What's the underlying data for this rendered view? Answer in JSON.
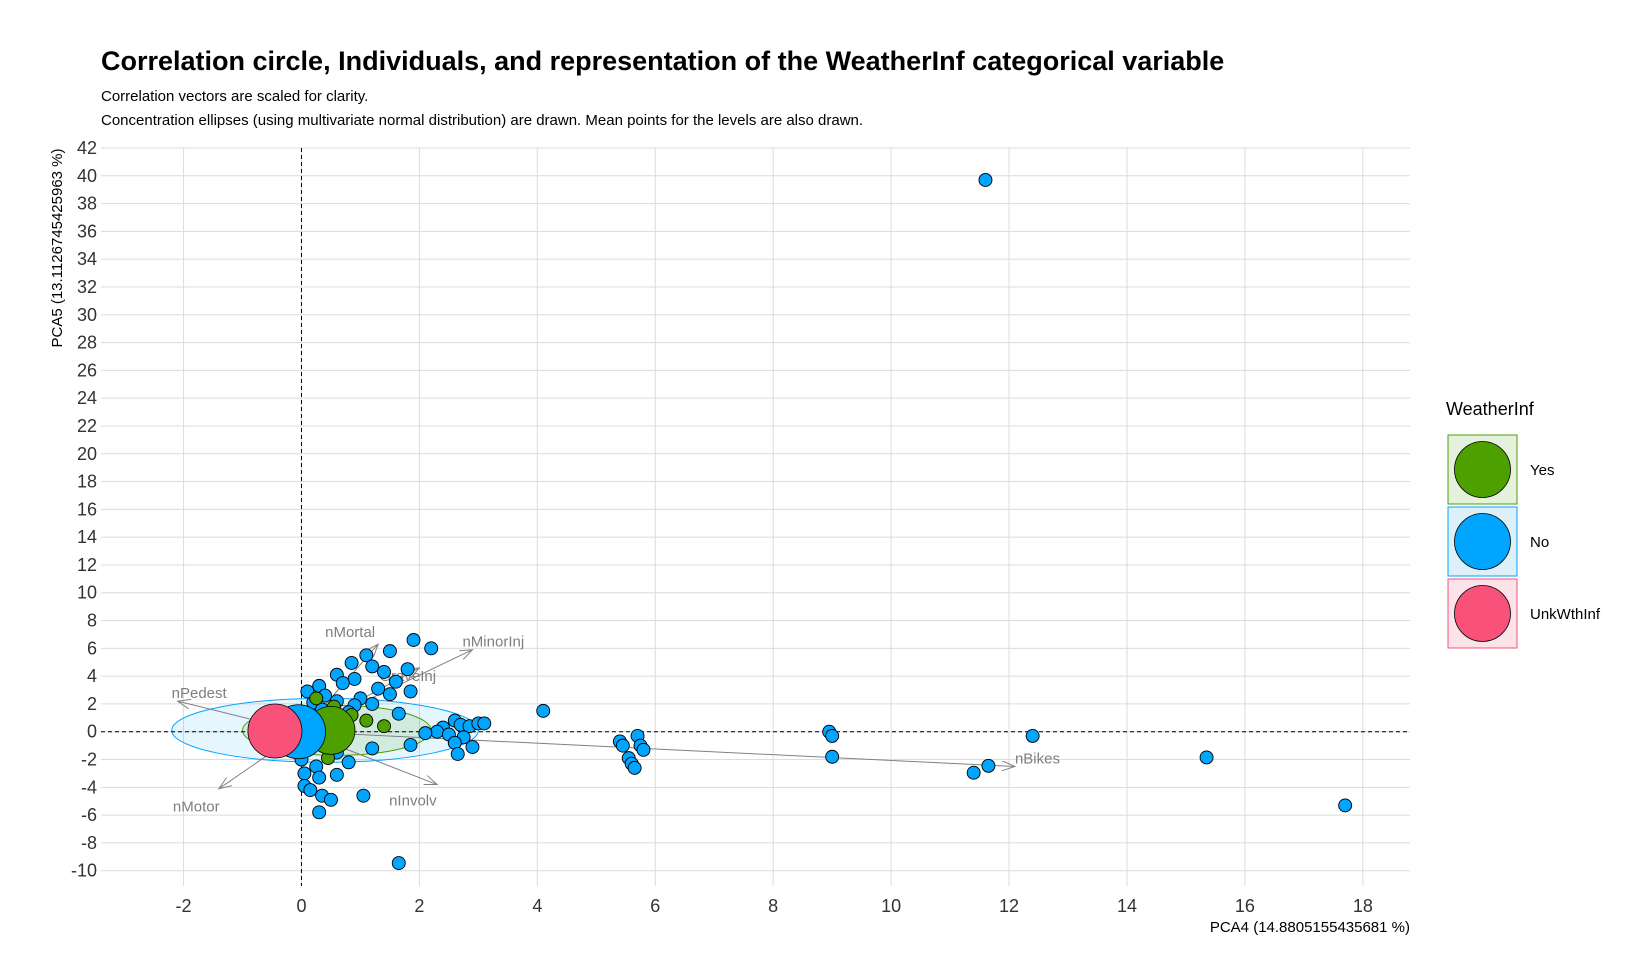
{
  "chart_data": {
    "type": "scatter",
    "title": "Correlation circle, Individuals, and representation of the WeatherInf categorical variable",
    "subtitle_lines": [
      "Correlation vectors are scaled for clarity.",
      "Concentration ellipses (using multivariate normal distribution) are drawn. Mean points for the levels are also drawn."
    ],
    "xlabel": "PCA4 (14.8805155435681 %)",
    "ylabel": "PCA5 (13.1126745425963 %)",
    "xlim": [
      -3.4,
      18.8
    ],
    "ylim": [
      -11.1,
      42
    ],
    "x_ticks": [
      -2,
      0,
      2,
      4,
      6,
      8,
      10,
      12,
      14,
      16,
      18
    ],
    "y_ticks": [
      -10,
      -8,
      -6,
      -4,
      -2,
      0,
      2,
      4,
      6,
      8,
      10,
      12,
      14,
      16,
      18,
      20,
      22,
      24,
      26,
      28,
      30,
      32,
      34,
      36,
      38,
      40,
      42
    ],
    "grid": true,
    "reference_lines": {
      "x": 0,
      "y": 0,
      "style": "dashed"
    },
    "legend": {
      "title": "WeatherInf",
      "position": "right",
      "entries": [
        "Yes",
        "No",
        "UnkWthInf"
      ]
    },
    "colors": {
      "Yes": "#4da000",
      "No": "#00a5ff",
      "UnkWthInf": "#f8527a"
    },
    "vectors": [
      {
        "name": "nMortal",
        "x": 1.3,
        "y": 6.3
      },
      {
        "name": "nMinorInj",
        "x": 2.9,
        "y": 5.9
      },
      {
        "name": "GraveInj",
        "x": 2.0,
        "y": 4.6
      },
      {
        "name": "nPedest",
        "x": -2.1,
        "y": 2.2
      },
      {
        "name": "nMotor",
        "x": -1.4,
        "y": -4.1
      },
      {
        "name": "nInvolv",
        "x": 2.3,
        "y": -3.8
      },
      {
        "name": "nBikes",
        "x": 12.1,
        "y": -2.5
      }
    ],
    "ellipses": [
      {
        "level": "No",
        "cx": 0.4,
        "cy": 0.1,
        "rx": 2.6,
        "ry": 2.3
      },
      {
        "level": "Yes",
        "cx": 0.6,
        "cy": 0.1,
        "rx": 1.6,
        "ry": 1.8
      }
    ],
    "mean_points": [
      {
        "level": "Yes",
        "x": 0.5,
        "y": 0.1
      },
      {
        "level": "No",
        "x": -0.05,
        "y": 0.0
      },
      {
        "level": "UnkWthInf",
        "x": -0.45,
        "y": 0.05
      }
    ],
    "series": [
      {
        "name": "No",
        "points": [
          [
            11.6,
            39.7
          ],
          [
            1.9,
            6.6
          ],
          [
            2.2,
            6.0
          ],
          [
            1.5,
            5.8
          ],
          [
            1.1,
            5.5
          ],
          [
            0.85,
            4.95
          ],
          [
            1.2,
            4.7
          ],
          [
            1.8,
            4.5
          ],
          [
            1.4,
            4.3
          ],
          [
            0.6,
            4.1
          ],
          [
            0.9,
            3.8
          ],
          [
            1.6,
            3.6
          ],
          [
            0.3,
            3.3
          ],
          [
            0.7,
            3.5
          ],
          [
            1.3,
            3.1
          ],
          [
            1.85,
            2.9
          ],
          [
            0.1,
            2.9
          ],
          [
            0.4,
            2.6
          ],
          [
            1.0,
            2.4
          ],
          [
            1.5,
            2.7
          ],
          [
            0.2,
            2.1
          ],
          [
            0.6,
            2.2
          ],
          [
            0.9,
            1.9
          ],
          [
            1.2,
            2.0
          ],
          [
            4.1,
            1.5
          ],
          [
            1.65,
            1.3
          ],
          [
            0.35,
            1.6
          ],
          [
            0.8,
            1.4
          ],
          [
            2.6,
            0.8
          ],
          [
            2.7,
            0.5
          ],
          [
            2.85,
            0.4
          ],
          [
            3.0,
            0.6
          ],
          [
            3.1,
            0.6
          ],
          [
            2.4,
            0.3
          ],
          [
            2.3,
            0.0
          ],
          [
            2.1,
            -0.1
          ],
          [
            2.5,
            -0.2
          ],
          [
            2.75,
            -0.4
          ],
          [
            2.6,
            -0.8
          ],
          [
            2.9,
            -1.1
          ],
          [
            2.65,
            -1.6
          ],
          [
            1.2,
            -1.2
          ],
          [
            1.85,
            -0.95
          ],
          [
            0.8,
            -2.2
          ],
          [
            0.6,
            -1.5
          ],
          [
            0.0,
            -2.0
          ],
          [
            0.25,
            -2.5
          ],
          [
            0.05,
            -3.0
          ],
          [
            0.3,
            -3.3
          ],
          [
            0.6,
            -3.1
          ],
          [
            0.05,
            -3.9
          ],
          [
            0.15,
            -4.2
          ],
          [
            0.35,
            -4.6
          ],
          [
            0.5,
            -4.9
          ],
          [
            1.05,
            -4.6
          ],
          [
            0.3,
            -5.8
          ],
          [
            1.65,
            -9.45
          ],
          [
            5.4,
            -0.7
          ],
          [
            5.45,
            -1.0
          ],
          [
            5.7,
            -0.3
          ],
          [
            5.75,
            -1.0
          ],
          [
            5.8,
            -1.3
          ],
          [
            5.55,
            -1.9
          ],
          [
            5.6,
            -2.3
          ],
          [
            5.65,
            -2.6
          ],
          [
            8.95,
            0.0
          ],
          [
            9.0,
            -0.3
          ],
          [
            9.0,
            -1.8
          ],
          [
            12.4,
            -0.3
          ],
          [
            11.4,
            -2.95
          ],
          [
            11.65,
            -2.45
          ],
          [
            15.35,
            -1.85
          ],
          [
            17.7,
            -5.3
          ]
        ]
      },
      {
        "name": "Yes",
        "points": [
          [
            0.25,
            2.4
          ],
          [
            0.55,
            1.8
          ],
          [
            0.85,
            1.2
          ],
          [
            1.1,
            0.8
          ],
          [
            1.4,
            0.4
          ],
          [
            0.45,
            -1.9
          ]
        ]
      }
    ]
  }
}
